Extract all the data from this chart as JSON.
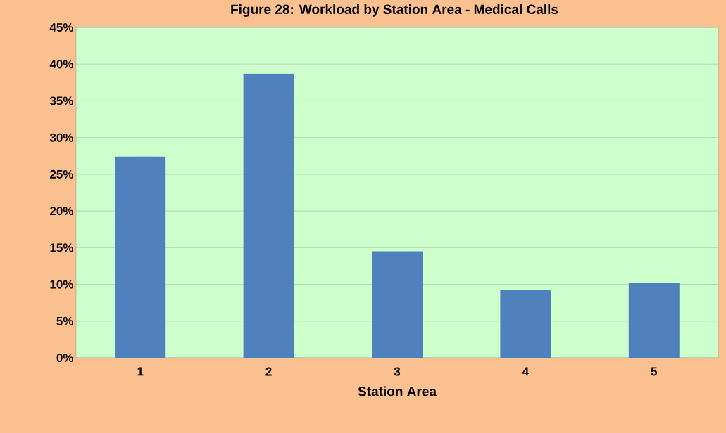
{
  "chart_data": {
    "type": "bar",
    "title": "Figure 28: Workload by Station Area - Medical Calls",
    "xlabel": "Station Area",
    "categories": [
      "1",
      "2",
      "3",
      "4",
      "5"
    ],
    "values": [
      27.4,
      38.7,
      14.5,
      9.2,
      10.2
    ],
    "color": "#4f81bd",
    "ylim": [
      0,
      45
    ],
    "yticks": [
      {
        "value": 0,
        "label": "0%"
      },
      {
        "value": 5,
        "label": "5%"
      },
      {
        "value": 10,
        "label": "10%"
      },
      {
        "value": 15,
        "label": "15%"
      },
      {
        "value": 20,
        "label": "20%"
      },
      {
        "value": 25,
        "label": "25%"
      },
      {
        "value": 30,
        "label": "30%"
      },
      {
        "value": 35,
        "label": "35%"
      },
      {
        "value": 40,
        "label": "40%"
      },
      {
        "value": 45,
        "label": "45%"
      }
    ],
    "grid": "y"
  }
}
